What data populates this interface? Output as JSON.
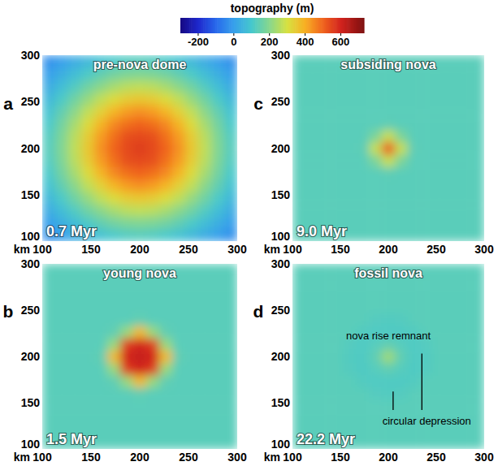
{
  "colorbar": {
    "label": "topography (m)",
    "range": [
      -300,
      730
    ],
    "ticks": [
      -200,
      0,
      200,
      400,
      600
    ]
  },
  "chart_data": [
    {
      "type": "heatmap",
      "label": "a",
      "title": "pre-nova dome",
      "time": "0.7 Myr",
      "xlabel": "km",
      "xlim": [
        100,
        300
      ],
      "ylim": [
        100,
        300
      ],
      "xticks": [
        100,
        150,
        200,
        250,
        300
      ],
      "yticks": [
        100,
        150,
        200,
        250,
        300
      ],
      "cells": [
        [
          -29,
          0,
          31,
          60,
          84,
          105,
          119,
          124,
          119,
          105,
          84,
          60,
          31,
          0,
          -29
        ],
        [
          0,
          37,
          74,
          110,
          143,
          169,
          185,
          190,
          185,
          169,
          143,
          110,
          74,
          37,
          0
        ],
        [
          31,
          74,
          119,
          164,
          204,
          239,
          262,
          270,
          262,
          239,
          204,
          164,
          119,
          74,
          31
        ],
        [
          60,
          110,
          164,
          218,
          270,
          313,
          343,
          353,
          343,
          313,
          270,
          218,
          164,
          110,
          60
        ],
        [
          84,
          143,
          204,
          270,
          333,
          387,
          426,
          440,
          426,
          387,
          333,
          270,
          204,
          143,
          84
        ],
        [
          105,
          169,
          239,
          313,
          387,
          450,
          486,
          500,
          486,
          450,
          387,
          313,
          239,
          169,
          105
        ],
        [
          119,
          185,
          262,
          343,
          426,
          486,
          532,
          540,
          532,
          486,
          426,
          343,
          262,
          185,
          119
        ],
        [
          124,
          190,
          270,
          353,
          440,
          500,
          540,
          560,
          540,
          500,
          440,
          353,
          270,
          190,
          124
        ],
        [
          119,
          185,
          262,
          343,
          426,
          486,
          532,
          540,
          532,
          486,
          426,
          343,
          262,
          185,
          119
        ],
        [
          105,
          169,
          239,
          313,
          387,
          450,
          486,
          500,
          486,
          450,
          387,
          313,
          239,
          169,
          105
        ],
        [
          84,
          143,
          204,
          270,
          333,
          387,
          426,
          440,
          426,
          387,
          333,
          270,
          204,
          143,
          84
        ],
        [
          60,
          110,
          164,
          218,
          270,
          313,
          343,
          353,
          343,
          313,
          270,
          218,
          164,
          110,
          60
        ],
        [
          31,
          74,
          119,
          164,
          204,
          239,
          262,
          270,
          262,
          239,
          204,
          164,
          119,
          74,
          31
        ],
        [
          0,
          37,
          74,
          110,
          143,
          169,
          185,
          190,
          185,
          169,
          143,
          110,
          74,
          37,
          0
        ],
        [
          -29,
          0,
          31,
          60,
          84,
          105,
          119,
          124,
          119,
          105,
          84,
          60,
          31,
          0,
          -29
        ]
      ]
    },
    {
      "type": "heatmap",
      "label": "b",
      "title": "young nova",
      "time": "1.5 Myr",
      "xlabel": "km",
      "xlim": [
        100,
        300
      ],
      "ylim": [
        100,
        300
      ],
      "xticks": [
        100,
        150,
        200,
        250,
        300
      ],
      "yticks": [
        100,
        150,
        200,
        250,
        300
      ],
      "cells": [
        [
          130,
          130,
          130,
          130,
          130,
          130,
          130,
          130,
          130,
          130,
          130,
          130,
          130,
          130,
          130
        ],
        [
          130,
          130,
          130,
          130,
          130,
          130,
          130,
          130,
          130,
          130,
          130,
          130,
          130,
          130,
          130
        ],
        [
          130,
          130,
          130,
          130,
          130,
          130,
          130,
          130,
          130,
          130,
          130,
          130,
          130,
          130,
          130
        ],
        [
          130,
          130,
          130,
          130,
          130,
          130,
          130,
          130,
          130,
          130,
          130,
          130,
          130,
          130,
          130
        ],
        [
          130,
          130,
          130,
          130,
          130,
          130,
          130,
          140,
          130,
          130,
          130,
          130,
          130,
          130,
          130
        ],
        [
          130,
          130,
          130,
          130,
          130,
          140,
          220,
          380,
          220,
          140,
          130,
          130,
          130,
          130,
          130
        ],
        [
          130,
          130,
          130,
          130,
          130,
          220,
          560,
          600,
          560,
          220,
          130,
          130,
          130,
          130,
          130
        ],
        [
          130,
          130,
          130,
          130,
          140,
          380,
          600,
          620,
          600,
          380,
          140,
          130,
          130,
          130,
          130
        ],
        [
          130,
          130,
          130,
          130,
          130,
          220,
          560,
          600,
          560,
          220,
          130,
          130,
          130,
          130,
          130
        ],
        [
          130,
          130,
          130,
          130,
          130,
          140,
          220,
          380,
          220,
          140,
          130,
          130,
          130,
          130,
          130
        ],
        [
          130,
          130,
          130,
          130,
          130,
          130,
          130,
          140,
          130,
          130,
          130,
          130,
          130,
          130,
          130
        ],
        [
          130,
          130,
          130,
          130,
          130,
          130,
          130,
          130,
          130,
          130,
          130,
          130,
          130,
          130,
          130
        ],
        [
          130,
          130,
          130,
          130,
          130,
          130,
          130,
          130,
          130,
          130,
          130,
          130,
          130,
          130,
          130
        ],
        [
          130,
          130,
          130,
          130,
          130,
          130,
          130,
          130,
          130,
          130,
          130,
          130,
          130,
          130,
          130
        ],
        [
          130,
          130,
          130,
          130,
          130,
          130,
          130,
          130,
          130,
          130,
          130,
          130,
          130,
          130,
          130
        ]
      ]
    },
    {
      "type": "heatmap",
      "label": "c",
      "title": "subsiding nova",
      "time": "9.0 Myr",
      "xlabel": "km",
      "xlim": [
        100,
        300
      ],
      "ylim": [
        100,
        300
      ],
      "xticks": [
        100,
        150,
        200,
        250,
        300
      ],
      "yticks": [
        100,
        150,
        200,
        250,
        300
      ],
      "cells": [
        [
          130,
          130,
          130,
          130,
          130,
          130,
          130,
          130,
          130,
          130,
          130,
          130,
          130,
          130,
          130
        ],
        [
          130,
          130,
          130,
          130,
          130,
          130,
          130,
          130,
          130,
          130,
          130,
          130,
          130,
          130,
          130
        ],
        [
          130,
          130,
          130,
          130,
          130,
          130,
          130,
          130,
          130,
          130,
          130,
          130,
          130,
          130,
          130
        ],
        [
          130,
          130,
          130,
          130,
          130,
          130,
          130,
          130,
          130,
          130,
          130,
          130,
          130,
          130,
          130
        ],
        [
          130,
          130,
          130,
          130,
          130,
          130,
          130,
          130,
          130,
          130,
          130,
          130,
          130,
          130,
          130
        ],
        [
          130,
          130,
          130,
          130,
          130,
          130,
          130,
          135,
          130,
          130,
          130,
          130,
          130,
          130,
          130
        ],
        [
          130,
          130,
          130,
          130,
          130,
          130,
          180,
          280,
          180,
          130,
          130,
          130,
          130,
          130,
          130
        ],
        [
          130,
          130,
          130,
          130,
          130,
          135,
          280,
          520,
          280,
          135,
          130,
          130,
          130,
          130,
          130
        ],
        [
          130,
          130,
          130,
          130,
          130,
          130,
          180,
          280,
          180,
          130,
          130,
          130,
          130,
          130,
          130
        ],
        [
          130,
          130,
          130,
          130,
          130,
          130,
          130,
          135,
          130,
          130,
          130,
          130,
          130,
          130,
          130
        ],
        [
          130,
          130,
          130,
          130,
          130,
          130,
          130,
          130,
          130,
          130,
          130,
          130,
          130,
          130,
          130
        ],
        [
          130,
          130,
          130,
          130,
          130,
          130,
          130,
          130,
          130,
          130,
          130,
          130,
          130,
          130,
          130
        ],
        [
          130,
          130,
          130,
          130,
          130,
          130,
          130,
          130,
          130,
          130,
          130,
          130,
          130,
          130,
          130
        ],
        [
          130,
          130,
          130,
          130,
          130,
          130,
          130,
          130,
          130,
          130,
          130,
          130,
          130,
          130,
          130
        ],
        [
          130,
          130,
          130,
          130,
          130,
          130,
          130,
          130,
          130,
          130,
          130,
          130,
          130,
          130,
          130
        ]
      ]
    },
    {
      "type": "heatmap",
      "label": "d",
      "title": "fossil nova",
      "time": "22.2 Myr",
      "xlabel": "km",
      "xlim": [
        100,
        300
      ],
      "ylim": [
        100,
        300
      ],
      "xticks": [
        100,
        150,
        200,
        250,
        300
      ],
      "yticks": [
        100,
        150,
        200,
        250,
        300
      ],
      "annotations": [
        "nova rise remnant",
        "circular depression"
      ],
      "cells": [
        [
          130,
          130,
          130,
          130,
          130,
          130,
          130,
          130,
          130,
          130,
          130,
          130,
          130,
          130,
          130
        ],
        [
          130,
          130,
          130,
          130,
          130,
          130,
          130,
          130,
          130,
          130,
          130,
          130,
          130,
          130,
          130
        ],
        [
          130,
          130,
          130,
          130,
          130,
          130,
          130,
          130,
          130,
          130,
          130,
          130,
          130,
          130,
          130
        ],
        [
          130,
          130,
          130,
          130,
          130,
          130,
          130,
          130,
          130,
          130,
          130,
          130,
          130,
          130,
          130
        ],
        [
          130,
          130,
          130,
          130,
          130,
          130,
          122,
          120,
          122,
          130,
          130,
          130,
          130,
          130,
          130
        ],
        [
          130,
          130,
          130,
          130,
          130,
          120,
          115,
          115,
          115,
          120,
          130,
          130,
          130,
          130,
          130
        ],
        [
          130,
          130,
          130,
          130,
          122,
          115,
          125,
          140,
          125,
          115,
          122,
          130,
          130,
          130,
          130
        ],
        [
          130,
          130,
          130,
          130,
          120,
          115,
          140,
          230,
          140,
          115,
          120,
          130,
          130,
          130,
          130
        ],
        [
          130,
          130,
          130,
          130,
          122,
          115,
          125,
          140,
          125,
          115,
          122,
          130,
          130,
          130,
          130
        ],
        [
          130,
          130,
          130,
          130,
          130,
          120,
          115,
          115,
          115,
          120,
          130,
          130,
          130,
          130,
          130
        ],
        [
          130,
          130,
          130,
          130,
          130,
          130,
          122,
          120,
          122,
          130,
          130,
          130,
          130,
          130,
          130
        ],
        [
          130,
          130,
          130,
          130,
          130,
          130,
          130,
          130,
          130,
          130,
          130,
          130,
          130,
          130,
          130
        ],
        [
          130,
          130,
          130,
          130,
          130,
          130,
          130,
          130,
          130,
          130,
          130,
          130,
          130,
          130,
          130
        ],
        [
          130,
          130,
          130,
          130,
          130,
          130,
          130,
          130,
          130,
          130,
          130,
          130,
          130,
          130,
          130
        ],
        [
          130,
          130,
          130,
          130,
          130,
          130,
          130,
          130,
          130,
          130,
          130,
          130,
          130,
          130,
          130
        ]
      ]
    }
  ]
}
